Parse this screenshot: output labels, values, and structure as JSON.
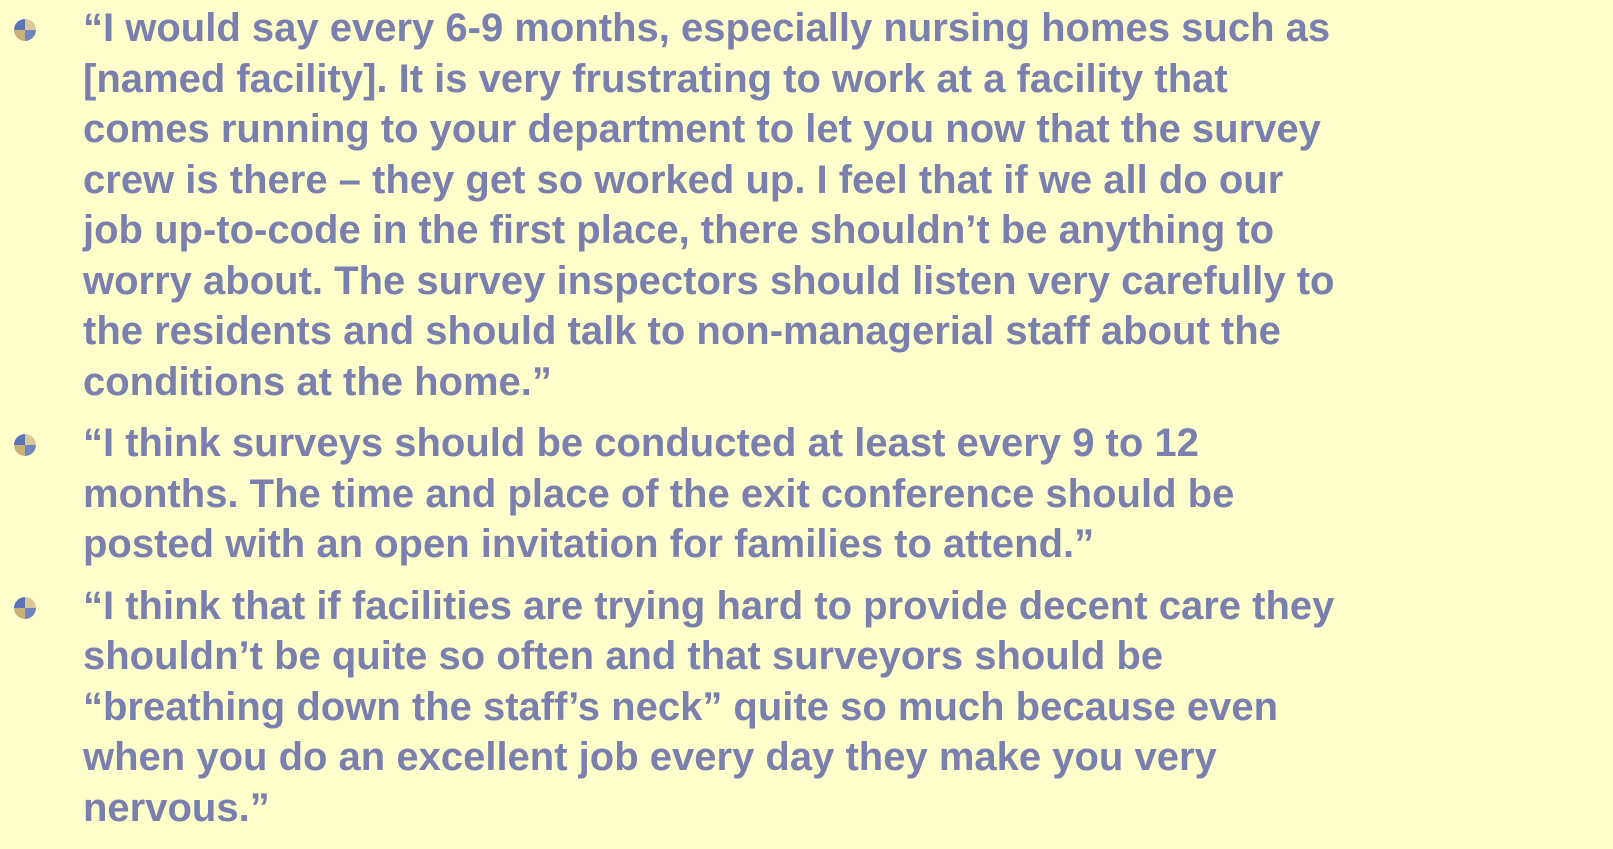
{
  "items": [
    {
      "lines": [
        "“I would say every 6-9 months, especially nursing homes such as",
        "[named facility].  It is very frustrating to work at a facility that",
        "comes running to your department to let you now that the survey",
        "crew is there – they get so worked up.  I feel that if we all do our",
        "job up-to-code in the first place, there shouldn’t be anything to",
        "worry about.  The survey inspectors should listen very carefully to",
        "the residents and should talk to non-managerial staff about the",
        "conditions at the home.”"
      ]
    },
    {
      "lines": [
        "“I think surveys should be conducted at least every 9 to 12",
        "months.  The time and place of the exit conference should be",
        "posted with an open invitation for families to attend.”"
      ]
    },
    {
      "lines": [
        "“I think that if facilities are trying hard to provide decent care they",
        "shouldn’t be quite so often and that surveyors should be",
        "“breathing down the staff’s neck” quite so much because even",
        "when you do an excellent job every day they make you very",
        "nervous.”"
      ]
    }
  ]
}
